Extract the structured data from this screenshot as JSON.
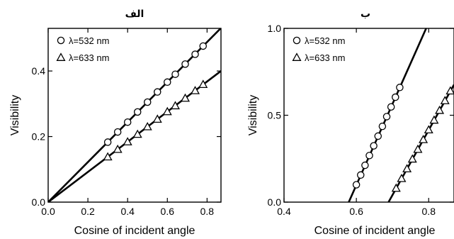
{
  "chart_data": [
    {
      "type": "scatter",
      "title": "الف",
      "xlabel": "Cosine of incident angle",
      "ylabel": "Visibility",
      "xlim": [
        0.0,
        0.87
      ],
      "ylim": [
        0.0,
        0.53
      ],
      "xticks": [
        "0.0",
        "0.2",
        "0.4",
        "0.6",
        "0.8"
      ],
      "yticks": [
        "0.0",
        "0.2",
        "0.4"
      ],
      "legend_position": "top-left",
      "series": [
        {
          "name": "λ=532 nm",
          "marker": "circle",
          "x": [
            0.3,
            0.35,
            0.4,
            0.45,
            0.5,
            0.55,
            0.6,
            0.64,
            0.69,
            0.74,
            0.78
          ],
          "y": [
            0.183,
            0.214,
            0.244,
            0.275,
            0.305,
            0.336,
            0.366,
            0.39,
            0.421,
            0.451,
            0.476
          ]
        },
        {
          "name": "λ=633 nm",
          "marker": "triangle",
          "x": [
            0.3,
            0.35,
            0.4,
            0.45,
            0.5,
            0.55,
            0.6,
            0.64,
            0.69,
            0.74,
            0.78
          ],
          "y": [
            0.138,
            0.161,
            0.184,
            0.207,
            0.23,
            0.253,
            0.276,
            0.294,
            0.317,
            0.34,
            0.359
          ]
        }
      ],
      "fit_lines": [
        {
          "x": [
            0.0,
            0.87
          ],
          "y": [
            0.0,
            0.531
          ]
        },
        {
          "x": [
            0.0,
            0.87
          ],
          "y": [
            0.0,
            0.4
          ]
        }
      ]
    },
    {
      "type": "scatter",
      "title": "ب",
      "xlabel": "Cosine of incident angle",
      "ylabel": "Visibility",
      "xlim": [
        0.4,
        0.87
      ],
      "ylim": [
        0.0,
        1.0
      ],
      "xticks": [
        "0.4",
        "0.6",
        "0.8"
      ],
      "yticks": [
        "0.0",
        "0.5",
        "1.0"
      ],
      "legend_position": "top-left",
      "series": [
        {
          "name": "λ=532 nm",
          "marker": "circle",
          "x": [
            0.6,
            0.612,
            0.624,
            0.636,
            0.648,
            0.66,
            0.672,
            0.684,
            0.696,
            0.708,
            0.72
          ],
          "y": [
            0.1,
            0.156,
            0.212,
            0.268,
            0.324,
            0.38,
            0.436,
            0.492,
            0.548,
            0.604,
            0.66
          ]
        },
        {
          "name": "λ=633 nm",
          "marker": "triangle",
          "x": [
            0.71,
            0.725,
            0.74,
            0.755,
            0.77,
            0.785,
            0.8,
            0.815,
            0.83,
            0.845,
            0.86
          ],
          "y": [
            0.08,
            0.136,
            0.192,
            0.248,
            0.304,
            0.36,
            0.416,
            0.472,
            0.528,
            0.584,
            0.64
          ]
        }
      ],
      "fit_lines": [
        {
          "x": [
            0.579,
            0.793
          ],
          "y": [
            0.0,
            1.0
          ]
        },
        {
          "x": [
            0.689,
            0.87
          ],
          "y": [
            0.0,
            0.676
          ]
        }
      ]
    }
  ]
}
